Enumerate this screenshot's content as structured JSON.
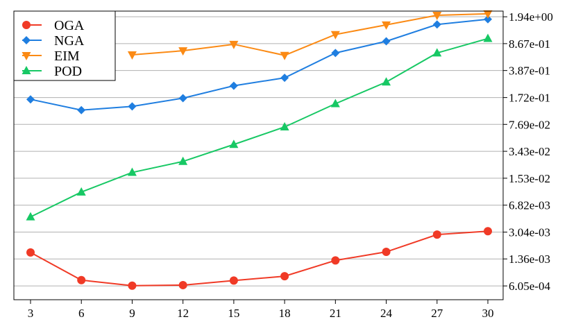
{
  "chart_data": {
    "type": "line",
    "x": [
      3,
      6,
      9,
      12,
      15,
      18,
      21,
      24,
      27,
      30
    ],
    "y_scale": "log",
    "y_axis_side": "right",
    "grid": "horizontal",
    "ylim": [
      0.0004,
      2.3
    ],
    "y_ticks": [
      {
        "value": 0.000605,
        "label": "6.05e-04"
      },
      {
        "value": 0.00136,
        "label": "1.36e-03"
      },
      {
        "value": 0.00304,
        "label": "3.04e-03"
      },
      {
        "value": 0.00682,
        "label": "6.82e-03"
      },
      {
        "value": 0.0153,
        "label": "1.53e-02"
      },
      {
        "value": 0.0343,
        "label": "3.43e-02"
      },
      {
        "value": 0.0769,
        "label": "7.69e-02"
      },
      {
        "value": 0.172,
        "label": "1.72e-01"
      },
      {
        "value": 0.387,
        "label": "3.87e-01"
      },
      {
        "value": 0.867,
        "label": "8.67e-01"
      },
      {
        "value": 1.94,
        "label": "1.94e+00"
      }
    ],
    "x_tick_labels": [
      "3",
      "6",
      "9",
      "12",
      "15",
      "18",
      "21",
      "24",
      "27",
      "30"
    ],
    "legend_position": "top-left",
    "series": [
      {
        "name": "OGA",
        "color": "#f03a26",
        "marker": "circle",
        "values": [
          0.00165,
          0.00072,
          0.00061,
          0.00062,
          0.00071,
          0.00081,
          0.0013,
          0.00168,
          0.00282,
          0.00312
        ]
      },
      {
        "name": "NGA",
        "color": "#1f7ee0",
        "marker": "diamond",
        "values": [
          0.163,
          0.118,
          0.132,
          0.169,
          0.245,
          0.311,
          0.655,
          0.93,
          1.54,
          1.8
        ]
      },
      {
        "name": "EIM",
        "color": "#fb8a14",
        "marker": "triangle-down",
        "values": [
          null,
          null,
          0.62,
          0.7,
          0.85,
          0.61,
          1.14,
          1.52,
          2.03,
          2.12
        ]
      },
      {
        "name": "POD",
        "color": "#17c864",
        "marker": "triangle-up",
        "values": [
          0.0048,
          0.0101,
          0.0182,
          0.0253,
          0.0421,
          0.0712,
          0.143,
          0.274,
          0.655,
          1.01
        ]
      }
    ]
  }
}
